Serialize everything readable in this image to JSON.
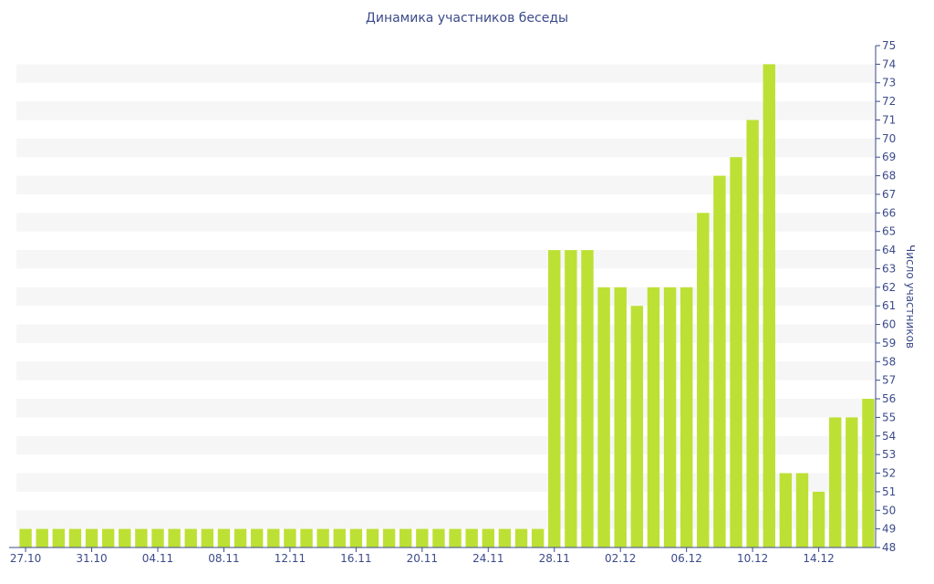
{
  "chart_data": {
    "type": "bar",
    "title": "Динамика участников беседы",
    "ylabel": "Число участников",
    "xlabel": "",
    "ylim": [
      48,
      75
    ],
    "y_axis_side": "right",
    "grid": "alternating horizontal bands",
    "bar_color": "#bde035",
    "band_color": "#f6f6f6",
    "text_color": "#3b4a8a",
    "x_tick_labels": [
      "27.10",
      "31.10",
      "04.11",
      "08.11",
      "12.11",
      "16.11",
      "20.11",
      "24.11",
      "28.11",
      "02.12",
      "06.12",
      "10.12",
      "14.12"
    ],
    "series": [
      {
        "values": [
          49,
          49,
          49,
          49,
          49,
          49,
          49,
          49,
          49,
          49,
          49,
          49,
          49,
          49,
          49,
          49,
          49,
          49,
          49,
          49,
          49,
          49,
          49,
          49,
          49,
          49,
          49,
          49,
          49,
          49,
          49,
          49,
          64,
          64,
          64,
          62,
          62,
          61,
          62,
          62,
          62,
          66,
          68,
          69,
          71,
          74,
          52,
          52,
          51,
          55,
          55,
          56
        ]
      }
    ]
  }
}
